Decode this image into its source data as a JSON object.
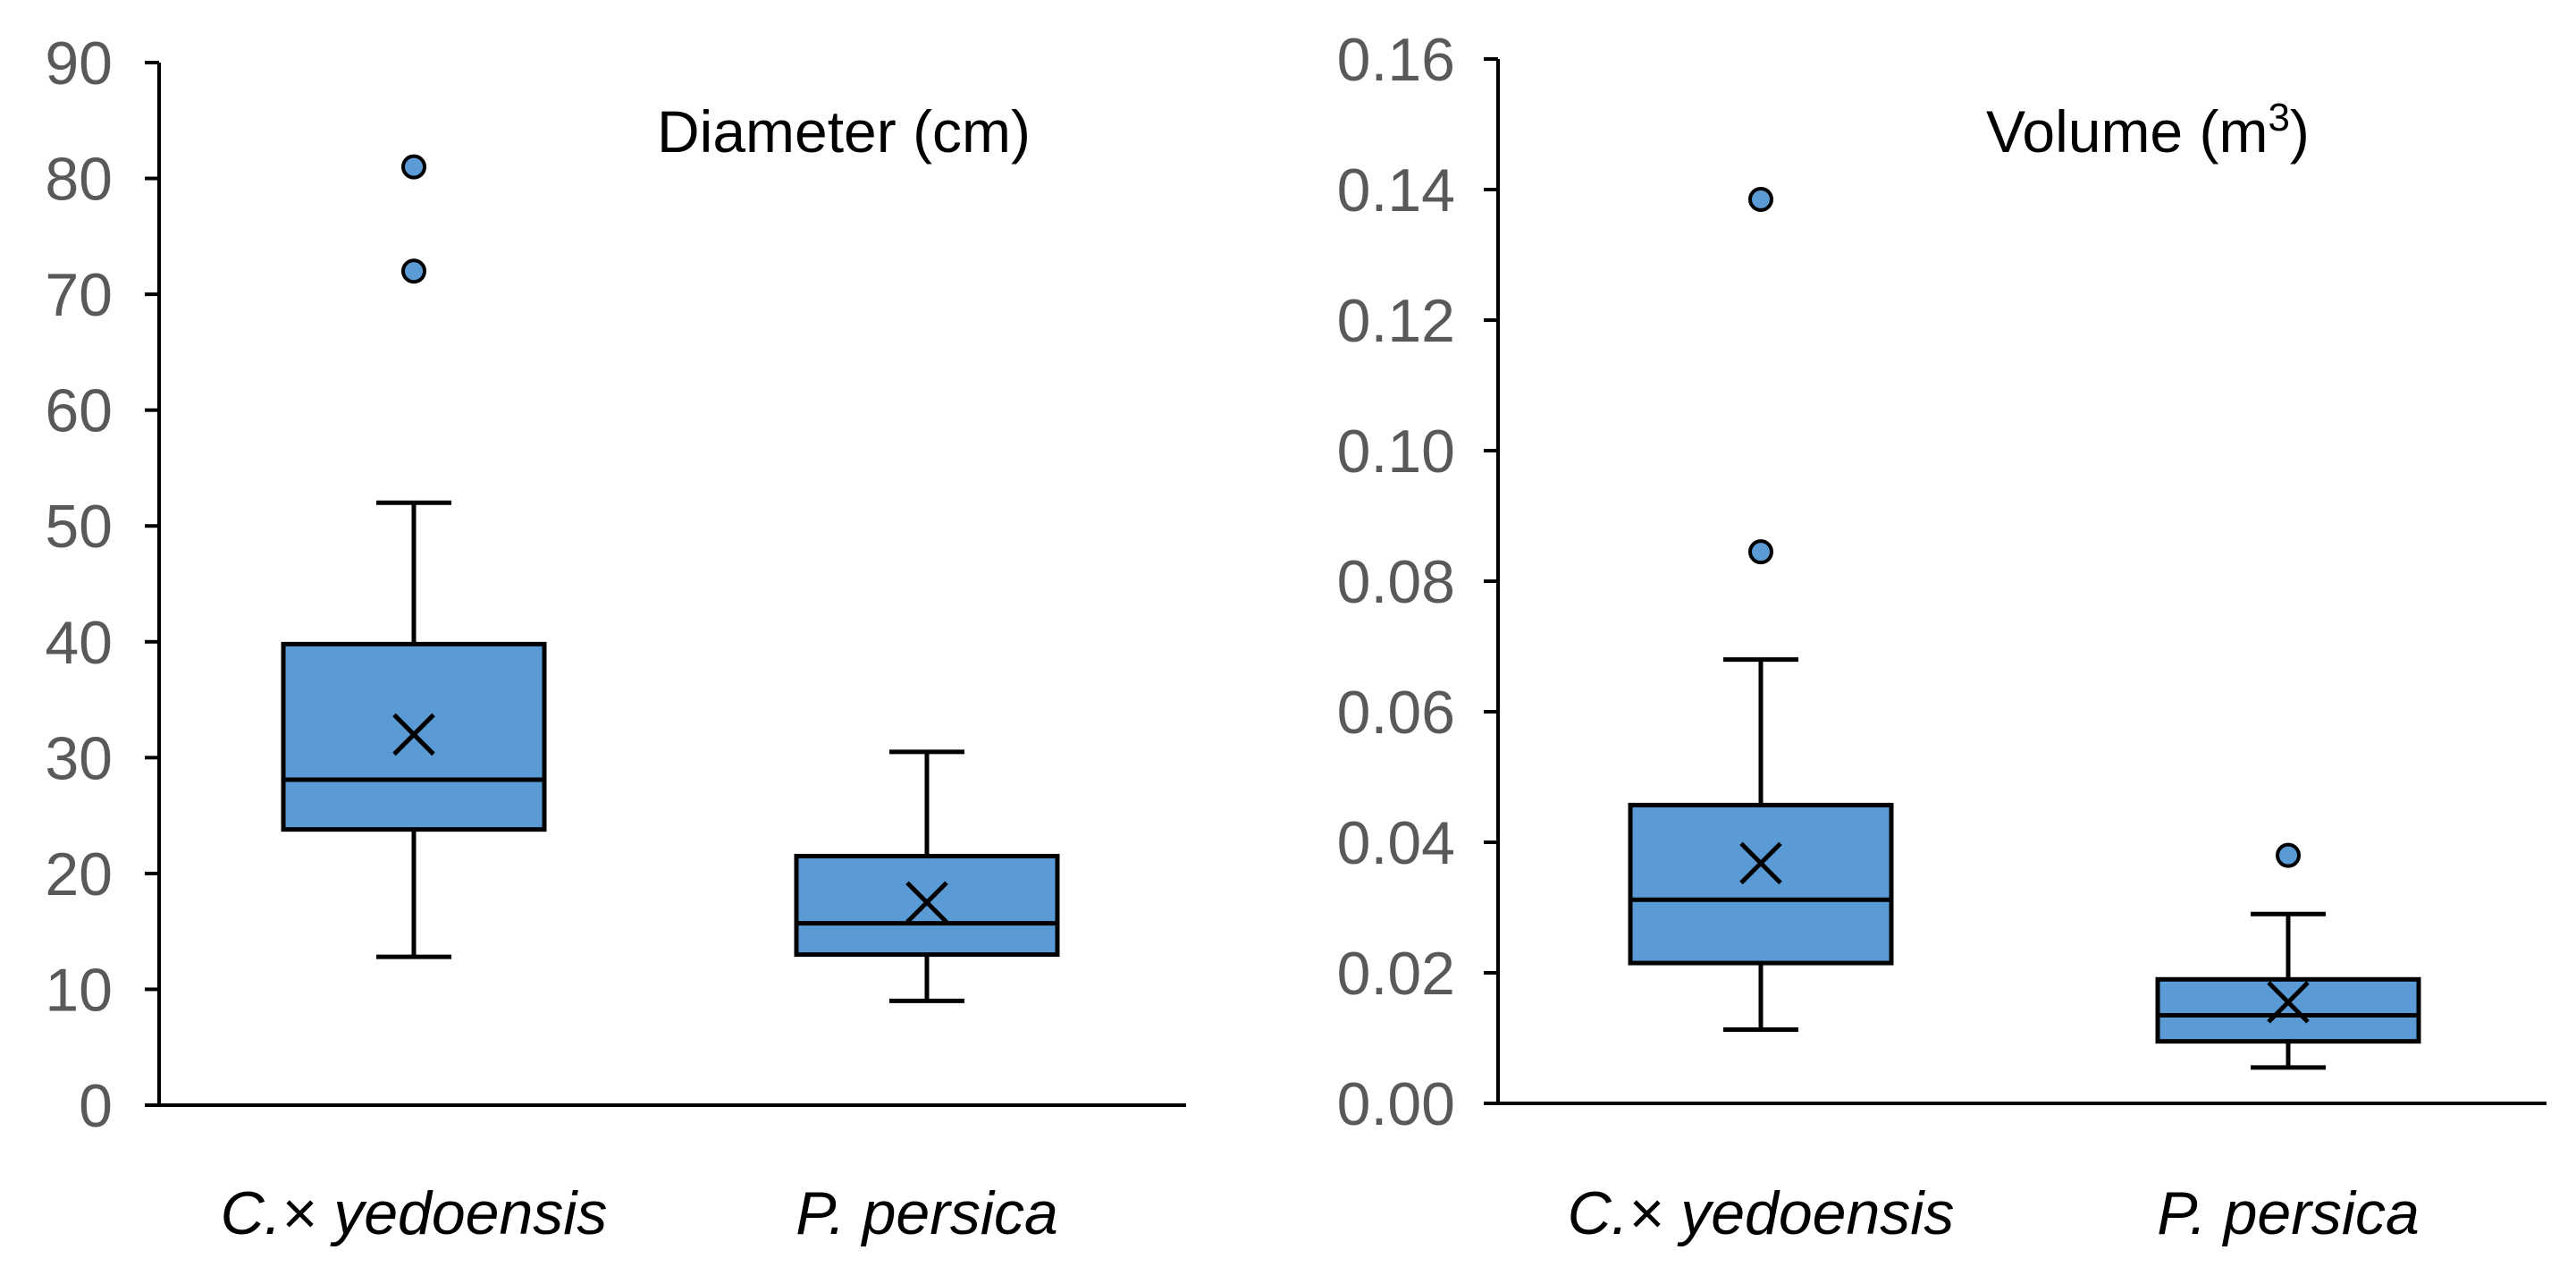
{
  "colors": {
    "box_fill": "#5b9bd5",
    "axis": "#000000",
    "tick_text": "#595959"
  },
  "chart_data": [
    {
      "type": "box",
      "title": "Diameter (cm)",
      "title_unit_superscript": "",
      "xlabel": "",
      "ylabel": "",
      "ylim": [
        0,
        90
      ],
      "ytick_values": [
        0,
        10,
        20,
        30,
        40,
        50,
        60,
        70,
        80,
        90
      ],
      "ytick_labels": [
        "0",
        "10",
        "20",
        "30",
        "40",
        "50",
        "60",
        "70",
        "80",
        "90"
      ],
      "categories": [
        "C.× yedoensis",
        "P. persica"
      ],
      "series": [
        {
          "name": "C.× yedoensis",
          "whisker_low": 12.8,
          "q1": 23.8,
          "median": 28.1,
          "q3": 39.8,
          "whisker_high": 52.0,
          "mean": 32.0,
          "outliers": [
            72.0,
            81.0
          ]
        },
        {
          "name": "P. persica",
          "whisker_low": 9.0,
          "q1": 13.0,
          "median": 15.7,
          "q3": 21.5,
          "whisker_high": 30.5,
          "mean": 17.5,
          "outliers": []
        }
      ]
    },
    {
      "type": "box",
      "title": "Volume (m",
      "title_unit_superscript": "3",
      "title_suffix": ")",
      "xlabel": "",
      "ylabel": "",
      "ylim": [
        0,
        0.16
      ],
      "ytick_values": [
        0,
        0.02,
        0.04,
        0.06,
        0.08,
        0.1,
        0.12,
        0.14,
        0.16
      ],
      "ytick_labels": [
        "0.00",
        "0.02",
        "0.04",
        "0.06",
        "0.08",
        "0.10",
        "0.12",
        "0.14",
        "0.16"
      ],
      "categories": [
        "C.× yedoensis",
        "P. persica"
      ],
      "series": [
        {
          "name": "C.× yedoensis",
          "whisker_low": 0.0113,
          "q1": 0.0215,
          "median": 0.0312,
          "q3": 0.0457,
          "whisker_high": 0.068,
          "mean": 0.0368,
          "outliers": [
            0.0845,
            0.1385
          ]
        },
        {
          "name": "P. persica",
          "whisker_low": 0.0055,
          "q1": 0.0095,
          "median": 0.0135,
          "q3": 0.019,
          "whisker_high": 0.029,
          "mean": 0.0155,
          "outliers": [
            0.038
          ]
        }
      ]
    }
  ]
}
